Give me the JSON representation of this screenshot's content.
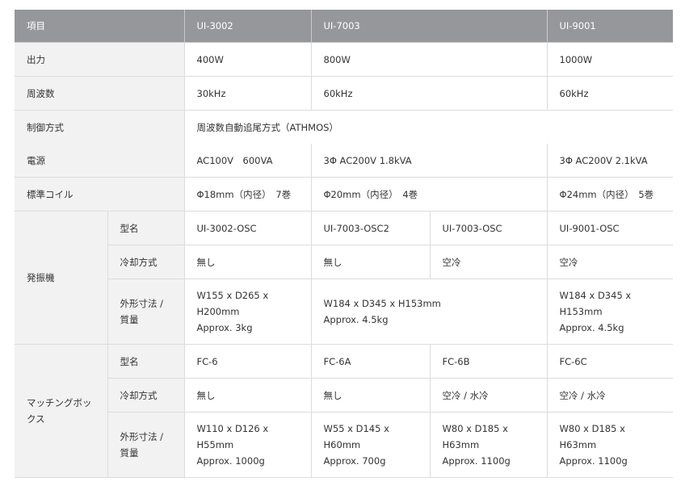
{
  "header": {
    "item": "項目",
    "models": [
      "UI-3002",
      "UI-7003",
      "UI-9001"
    ]
  },
  "output": {
    "label": "出力",
    "values": [
      "400W",
      "800W",
      "1000W"
    ]
  },
  "frequency": {
    "label": "周波数",
    "values": [
      "30kHz",
      "60kHz",
      "60kHz"
    ]
  },
  "control": {
    "label": "制御方式",
    "value": "周波数自動追尾方式（ATHMOS）"
  },
  "power": {
    "label": "電源",
    "values": [
      "AC100V　600VA",
      "3Φ AC200V 1.8kVA",
      "3Φ AC200V 2.1kVA"
    ]
  },
  "coil": {
    "label": "標準コイル",
    "values": [
      "Φ18mm（内径）　7巻",
      "Φ20mm（内径）　4巻",
      "Φ24mm（内径）　5巻"
    ]
  },
  "oscillator": {
    "label": "発振機",
    "model_label": "型名",
    "models": [
      "UI-3002-OSC",
      "UI-7003-OSC2",
      "UI-7003-OSC",
      "UI-9001-OSC"
    ],
    "cooling_label": "冷却方式",
    "cooling": [
      "無し",
      "無し",
      "空冷",
      "空冷"
    ],
    "dims_label": [
      "外形寸法 /",
      "質量"
    ],
    "dims": [
      [
        "W155 x D265 x",
        "H200mm",
        "Approx. 3kg"
      ],
      [
        "W184 x D345 x H153mm",
        "Approx. 4.5kg"
      ],
      [
        "W184 x D345 x",
        "H153mm",
        "Approx. 4.5kg"
      ]
    ]
  },
  "matching_box": {
    "label": [
      "マッチングボッ",
      "クス"
    ],
    "model_label": "型名",
    "models": [
      "FC-6",
      "FC-6A",
      "FC-6B",
      "FC-6C"
    ],
    "cooling_label": "冷却方式",
    "cooling": [
      "無し",
      "無し",
      "空冷 / 水冷",
      "空冷 / 水冷"
    ],
    "dims_label": [
      "外形寸法 /",
      "質量"
    ],
    "dims": [
      [
        "W110 x D126 x",
        "H55mm",
        "Approx. 1000g"
      ],
      [
        "W55 x D145 x",
        "H60mm",
        "Approx. 700g"
      ],
      [
        "W80 x D185 x",
        "H63mm",
        "Approx. 1100g"
      ],
      [
        "W80 x D185 x",
        "H63mm",
        "Approx. 1100g"
      ]
    ]
  }
}
